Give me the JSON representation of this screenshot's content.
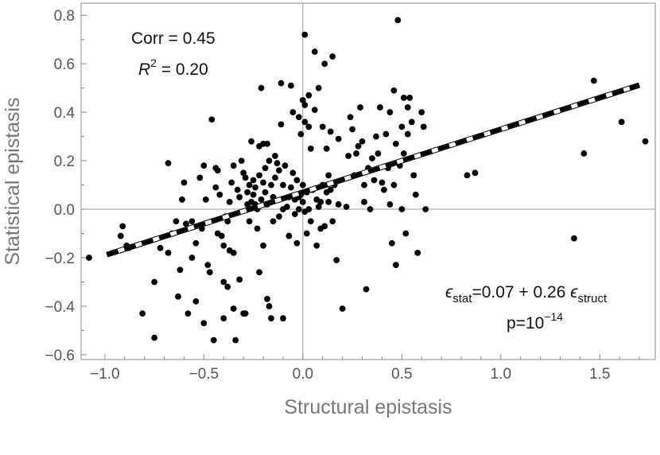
{
  "chart_data": {
    "type": "scatter",
    "title": "",
    "xlabel": "Structural epistasis",
    "ylabel": "Statistical epistasis",
    "xlim": [
      -1.12,
      1.78
    ],
    "ylim": [
      -0.62,
      0.85
    ],
    "x_ticks": [
      -1.0,
      -0.5,
      0.0,
      0.5,
      1.0,
      1.5
    ],
    "x_tick_labels": [
      "−1.0",
      "−0.5",
      "0.0",
      "0.5",
      "1.0",
      "1.5"
    ],
    "y_ticks": [
      -0.6,
      -0.4,
      -0.2,
      0.0,
      0.2,
      0.4,
      0.6,
      0.8
    ],
    "y_tick_labels": [
      "−0.6",
      "−0.4",
      "−0.2",
      "0.0",
      "0.2",
      "0.4",
      "0.6",
      "0.8"
    ],
    "grid": false,
    "zero_lines": true,
    "fit_line": {
      "intercept": 0.07,
      "slope": 0.26,
      "style": "dashed"
    },
    "annotations": {
      "corr": "Corr = 0.45",
      "r2_base": "R",
      "r2_exp": "2",
      "r2_value": " = 0.20",
      "eq_eps1": "ϵ",
      "eq_sub1": "stat",
      "eq_mid": "=0.07 + 0.26 ",
      "eq_eps2": "ϵ",
      "eq_sub2": "struct",
      "p_base": "p=10",
      "p_exp": "−14"
    },
    "point_color": "#000000",
    "points": [
      [
        -1.08,
        -0.2
      ],
      [
        -0.91,
        -0.07
      ],
      [
        -0.92,
        -0.11
      ],
      [
        -0.89,
        -0.15
      ],
      [
        -0.88,
        -0.16
      ],
      [
        -0.81,
        -0.43
      ],
      [
        -0.75,
        -0.53
      ],
      [
        -0.75,
        -0.3
      ],
      [
        -0.72,
        -0.16
      ],
      [
        -0.68,
        0.19
      ],
      [
        -0.68,
        -0.18
      ],
      [
        -0.66,
        -0.1
      ],
      [
        -0.64,
        -0.05
      ],
      [
        -0.63,
        -0.36
      ],
      [
        -0.62,
        -0.25
      ],
      [
        -0.61,
        0.04
      ],
      [
        -0.6,
        0.11
      ],
      [
        -0.59,
        -0.06
      ],
      [
        -0.58,
        -0.43
      ],
      [
        -0.56,
        -0.05
      ],
      [
        -0.56,
        -0.2
      ],
      [
        -0.54,
        -0.38
      ],
      [
        -0.54,
        -0.14
      ],
      [
        -0.52,
        0.13
      ],
      [
        -0.51,
        -0.08
      ],
      [
        -0.5,
        0.18
      ],
      [
        -0.5,
        -0.47
      ],
      [
        -0.49,
        0.04
      ],
      [
        -0.48,
        -0.23
      ],
      [
        -0.47,
        -0.26
      ],
      [
        -0.46,
        0.37
      ],
      [
        -0.45,
        -0.54
      ],
      [
        -0.44,
        0.17
      ],
      [
        -0.44,
        0.09
      ],
      [
        -0.43,
        0.16
      ],
      [
        -0.43,
        -0.1
      ],
      [
        -0.42,
        0.06
      ],
      [
        -0.41,
        -0.11
      ],
      [
        -0.4,
        -0.15
      ],
      [
        -0.4,
        -0.45
      ],
      [
        -0.4,
        -0.3
      ],
      [
        -0.39,
        -0.03
      ],
      [
        -0.38,
        -0.32
      ],
      [
        -0.38,
        -0.05
      ],
      [
        -0.37,
        0.03
      ],
      [
        -0.37,
        -0.17
      ],
      [
        -0.36,
        0.11
      ],
      [
        -0.35,
        -0.41
      ],
      [
        -0.35,
        0.18
      ],
      [
        -0.35,
        -0.18
      ],
      [
        -0.34,
        -0.54
      ],
      [
        -0.33,
        0.08
      ],
      [
        -0.32,
        -0.29
      ],
      [
        -0.32,
        0.05
      ],
      [
        -0.31,
        0.2
      ],
      [
        -0.3,
        0.15
      ],
      [
        -0.3,
        -0.43
      ],
      [
        -0.29,
        0.13
      ],
      [
        -0.29,
        -0.43
      ],
      [
        -0.28,
        0.07
      ],
      [
        -0.28,
        0.02
      ],
      [
        -0.27,
        0.1
      ],
      [
        -0.27,
        -0.05
      ],
      [
        -0.26,
        0.28
      ],
      [
        -0.26,
        0.03
      ],
      [
        -0.25,
        0.12
      ],
      [
        -0.25,
        0.06
      ],
      [
        -0.24,
        0.09
      ],
      [
        -0.24,
        0.02
      ],
      [
        -0.23,
        -0.08
      ],
      [
        -0.23,
        0.0
      ],
      [
        -0.22,
        0.14
      ],
      [
        -0.22,
        0.26
      ],
      [
        -0.22,
        -0.26
      ],
      [
        -0.21,
        0.5
      ],
      [
        -0.21,
        0.04
      ],
      [
        -0.2,
        0.27
      ],
      [
        -0.2,
        0.11
      ],
      [
        -0.2,
        -0.15
      ],
      [
        -0.19,
        0.17
      ],
      [
        -0.19,
        0.07
      ],
      [
        -0.18,
        0.02
      ],
      [
        -0.18,
        -0.37
      ],
      [
        -0.18,
        0.27
      ],
      [
        -0.17,
        0.2
      ],
      [
        -0.17,
        -0.4
      ],
      [
        -0.16,
        0.1
      ],
      [
        -0.16,
        -0.45
      ],
      [
        -0.15,
        0.05
      ],
      [
        -0.15,
        -0.05
      ],
      [
        -0.14,
        0.13
      ],
      [
        -0.14,
        0.22
      ],
      [
        -0.13,
        0.19
      ],
      [
        -0.12,
        0.16
      ],
      [
        -0.12,
        -0.03
      ],
      [
        -0.11,
        0.52
      ],
      [
        -0.11,
        0.35
      ],
      [
        -0.1,
        0.1
      ],
      [
        -0.1,
        -0.45
      ],
      [
        -0.1,
        0.0
      ],
      [
        -0.09,
        0.18
      ],
      [
        -0.08,
        0.01
      ],
      [
        -0.07,
        -0.11
      ],
      [
        -0.07,
        0.05
      ],
      [
        -0.06,
        0.51
      ],
      [
        -0.06,
        0.09
      ],
      [
        -0.05,
        0.4
      ],
      [
        -0.05,
        0.15
      ],
      [
        -0.04,
        -0.02
      ],
      [
        -0.04,
        0.04
      ],
      [
        -0.03,
        0.12
      ],
      [
        -0.03,
        -0.14
      ],
      [
        -0.02,
        0.38
      ],
      [
        -0.02,
        0.05
      ],
      [
        -0.02,
        0.0
      ],
      [
        -0.01,
        0.31
      ],
      [
        -0.01,
        0.06
      ],
      [
        0.0,
        0.1
      ],
      [
        0.0,
        0.45
      ],
      [
        0.0,
        0.03
      ],
      [
        0.01,
        0.72
      ],
      [
        0.01,
        0.43
      ],
      [
        0.01,
        0.36
      ],
      [
        0.01,
        -0.01
      ],
      [
        0.02,
        0.07
      ],
      [
        0.02,
        -0.1
      ],
      [
        0.03,
        0.47
      ],
      [
        0.03,
        0.34
      ],
      [
        0.03,
        0.0
      ],
      [
        0.04,
        0.25
      ],
      [
        0.04,
        -0.05
      ],
      [
        0.05,
        0.08
      ],
      [
        0.06,
        0.65
      ],
      [
        0.06,
        0.41
      ],
      [
        0.07,
        -0.15
      ],
      [
        0.07,
        0.04
      ],
      [
        0.08,
        0.5
      ],
      [
        0.08,
        0.01
      ],
      [
        0.09,
        -0.08
      ],
      [
        0.09,
        0.03
      ],
      [
        0.1,
        0.34
      ],
      [
        0.1,
        0.1
      ],
      [
        0.11,
        0.6
      ],
      [
        0.11,
        -0.07
      ],
      [
        0.12,
        0.25
      ],
      [
        0.12,
        0.07
      ],
      [
        0.13,
        0.14
      ],
      [
        0.13,
        0.03
      ],
      [
        0.14,
        0.32
      ],
      [
        0.14,
        0.08
      ],
      [
        0.15,
        0.63
      ],
      [
        0.15,
        -0.05
      ],
      [
        0.16,
        0.1
      ],
      [
        0.17,
        -0.21
      ],
      [
        0.18,
        0.29
      ],
      [
        0.18,
        0.02
      ],
      [
        0.2,
        -0.41
      ],
      [
        0.22,
        0.01
      ],
      [
        0.23,
        0.22
      ],
      [
        0.24,
        0.38
      ],
      [
        0.25,
        0.33
      ],
      [
        0.26,
        0.14
      ],
      [
        0.27,
        0.23
      ],
      [
        0.28,
        0.26
      ],
      [
        0.29,
        0.42
      ],
      [
        0.3,
        0.28
      ],
      [
        0.31,
        0.1
      ],
      [
        0.31,
        0.03
      ],
      [
        0.32,
        -0.33
      ],
      [
        0.33,
        0.17
      ],
      [
        0.34,
        0.0
      ],
      [
        0.35,
        0.21
      ],
      [
        0.36,
        0.12
      ],
      [
        0.37,
        0.3
      ],
      [
        0.38,
        0.23
      ],
      [
        0.39,
        0.42
      ],
      [
        0.4,
        0.11
      ],
      [
        0.41,
        0.08
      ],
      [
        0.42,
        0.31
      ],
      [
        0.43,
        0.17
      ],
      [
        0.44,
        0.4
      ],
      [
        0.44,
        0.02
      ],
      [
        0.45,
        -0.14
      ],
      [
        0.46,
        0.49
      ],
      [
        0.46,
        0.1
      ],
      [
        0.47,
        0.27
      ],
      [
        0.47,
        -0.23
      ],
      [
        0.48,
        0.78
      ],
      [
        0.49,
        0.18
      ],
      [
        0.5,
        0.34
      ],
      [
        0.5,
        0.0
      ],
      [
        0.51,
        0.46
      ],
      [
        0.51,
        0.23
      ],
      [
        0.52,
        -0.1
      ],
      [
        0.53,
        0.42
      ],
      [
        0.53,
        0.31
      ],
      [
        0.54,
        0.46
      ],
      [
        0.55,
        0.36
      ],
      [
        0.56,
        0.14
      ],
      [
        0.57,
        0.06
      ],
      [
        0.58,
        -0.18
      ],
      [
        0.6,
        0.4
      ],
      [
        0.61,
        0.34
      ],
      [
        0.62,
        0.0
      ],
      [
        0.83,
        0.14
      ],
      [
        0.87,
        0.15
      ],
      [
        1.37,
        -0.12
      ],
      [
        1.42,
        0.23
      ],
      [
        1.47,
        0.53
      ],
      [
        1.61,
        0.36
      ],
      [
        1.73,
        0.28
      ]
    ]
  }
}
